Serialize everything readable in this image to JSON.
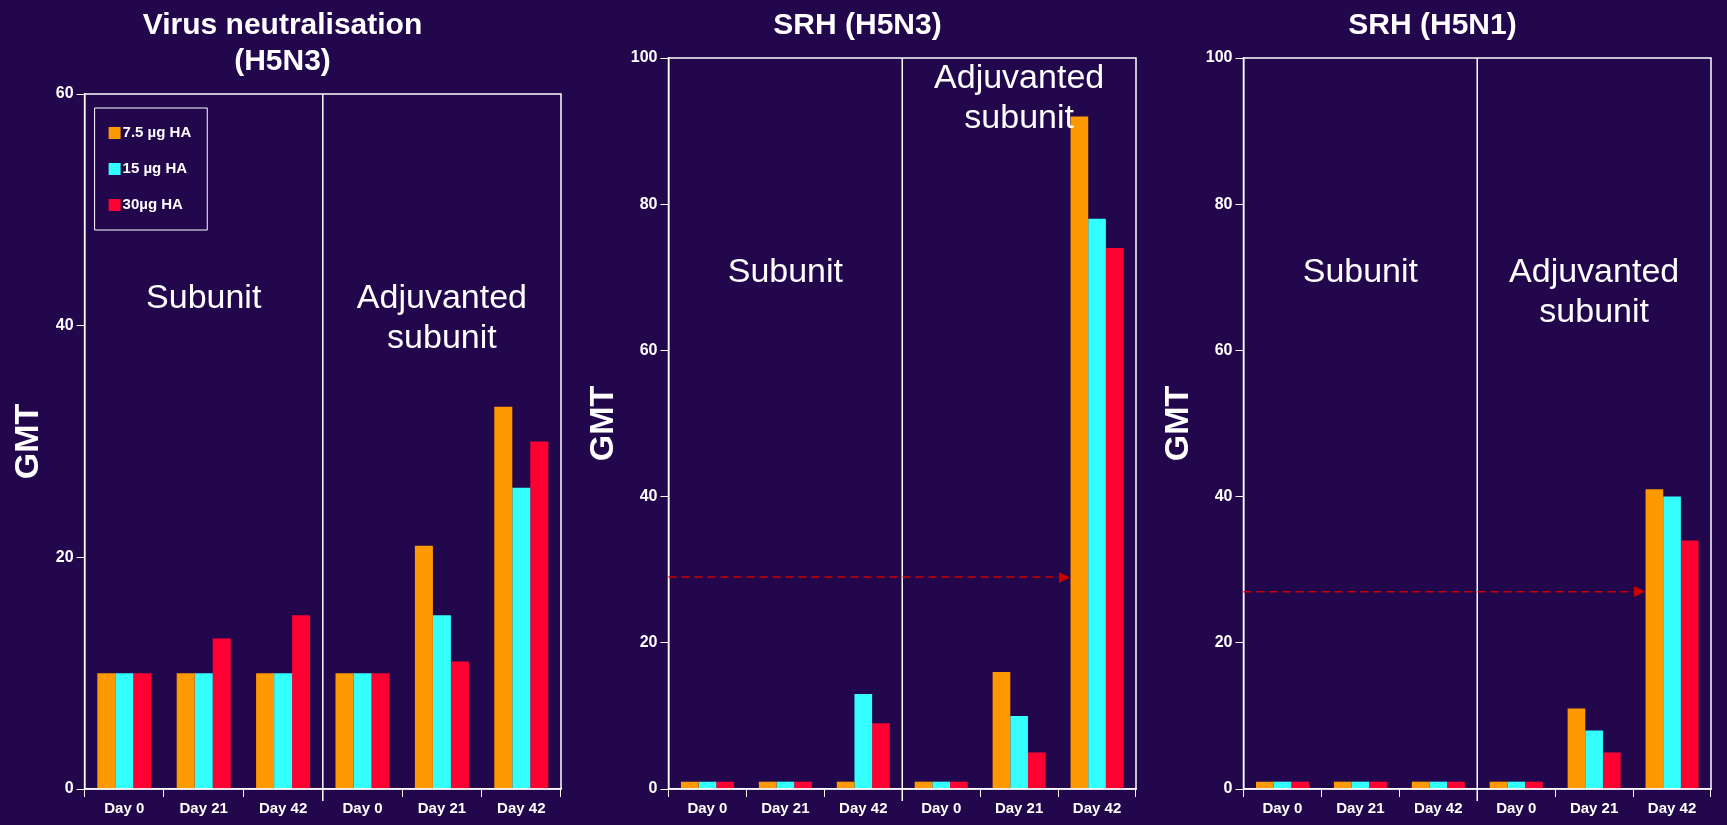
{
  "chart_data": [
    {
      "type": "bar",
      "title": "Virus neutralisation\n(H5N3)",
      "ylabel": "GMT",
      "categories": [
        "Day 0",
        "Day 21",
        "Day 42",
        "Day 0",
        "Day 21",
        "Day 42"
      ],
      "series": [
        {
          "name": "7.5 µg HA",
          "color": "#ff9900",
          "values": [
            10,
            10,
            10,
            10,
            21,
            33
          ]
        },
        {
          "name": "15 µg HA",
          "color": "#33ffff",
          "values": [
            10,
            10,
            10,
            10,
            15,
            26
          ]
        },
        {
          "name": "30µg HA",
          "color": "#ff0033",
          "values": [
            10,
            13,
            15,
            10,
            11,
            30
          ]
        }
      ],
      "ylim": [
        0,
        60
      ],
      "yticks": [
        0,
        20,
        40,
        60
      ],
      "grid": false,
      "legend": "top left",
      "annotations": [
        "Subunit",
        "Adjuvanted subunit"
      ]
    },
    {
      "type": "bar",
      "title": "SRH (H5N3)",
      "ylabel": "GMT",
      "categories": [
        "Day 0",
        "Day 21",
        "Day 42",
        "Day 0",
        "Day 21",
        "Day 42"
      ],
      "series": [
        {
          "color": "#ff9900",
          "values": [
            1,
            1,
            1,
            1,
            16,
            92
          ]
        },
        {
          "color": "#33ffff",
          "values": [
            1,
            1,
            13,
            1,
            10,
            78
          ]
        },
        {
          "color": "#ff0033",
          "values": [
            1,
            1,
            9,
            1,
            5,
            74
          ]
        }
      ],
      "ylim": [
        0,
        100
      ],
      "yticks": [
        0,
        20,
        40,
        60,
        80,
        100
      ],
      "grid": false,
      "legend": false,
      "ref_lines": [
        {
          "axis": "y",
          "value": 29,
          "color": "#cc0000",
          "line_style": "dashed"
        }
      ],
      "annotations": [
        "Subunit",
        "Adjuvanted subunit"
      ]
    },
    {
      "type": "bar",
      "title": "SRH (H5N1)",
      "ylabel": "GMT",
      "categories": [
        "Day 0",
        "Day 21",
        "Day 42",
        "Day 0",
        "Day 21",
        "Day 42"
      ],
      "series": [
        {
          "color": "#ff9900",
          "values": [
            1,
            1,
            1,
            1,
            11,
            41
          ]
        },
        {
          "color": "#33ffff",
          "values": [
            1,
            1,
            1,
            1,
            8,
            40
          ]
        },
        {
          "color": "#ff0033",
          "values": [
            1,
            1,
            1,
            1,
            5,
            34
          ]
        }
      ],
      "ylim": [
        0,
        100
      ],
      "yticks": [
        0,
        20,
        40,
        60,
        80,
        100
      ],
      "grid": false,
      "legend": false,
      "ref_lines": [
        {
          "axis": "y",
          "value": 27,
          "color": "#cc0000",
          "line_style": "dashed"
        }
      ],
      "annotations": [
        "Subunit",
        "Adjuvanted subunit"
      ]
    }
  ]
}
